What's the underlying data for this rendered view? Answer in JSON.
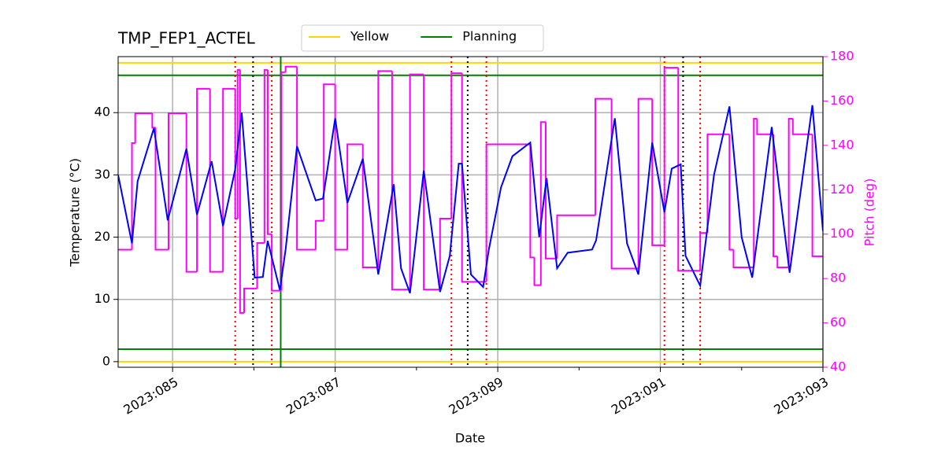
{
  "chart_data": {
    "type": "line",
    "title": "TMP_FEP1_ACTEL",
    "xlabel": "Date",
    "ylabel": "Temperature (°C)",
    "y2label": "Pitch (deg)",
    "y2color": "magenta",
    "xlim": [
      84.33,
      93
    ],
    "xticks": [
      {
        "value": 85,
        "label": "2023:085"
      },
      {
        "value": 87,
        "label": "2023:087"
      },
      {
        "value": 89,
        "label": "2023:089"
      },
      {
        "value": 91,
        "label": "2023:091"
      },
      {
        "value": 93,
        "label": "2023:093"
      }
    ],
    "xminorticks": [
      86,
      88,
      90,
      92
    ],
    "ylim": [
      -0.9,
      49
    ],
    "yticks": [
      0,
      10,
      20,
      30,
      40
    ],
    "y2lim": [
      40,
      180
    ],
    "y2ticks": [
      40,
      60,
      80,
      100,
      120,
      140,
      160,
      180
    ],
    "grid": true,
    "legend": "top",
    "hlines": [
      {
        "name": "Yellow",
        "color": "gold",
        "values": [
          48,
          0
        ]
      },
      {
        "name": "Planning",
        "color": "green",
        "values": [
          46,
          2
        ]
      }
    ],
    "vlines": [
      {
        "color": "red",
        "style": "dotted",
        "x": [
          85.77,
          86.22,
          88.43,
          88.86,
          91.05,
          91.49
        ]
      },
      {
        "color": "black",
        "style": "dotted",
        "x": [
          85.99,
          88.63,
          91.28
        ]
      },
      {
        "color": "green",
        "style": "solid",
        "x": [
          86.33
        ]
      }
    ],
    "series": [
      {
        "color": "magenta",
        "axis": "y2",
        "drawstyle": "steps",
        "edges": [
          84.33,
          84.5,
          84.54,
          84.75,
          84.79,
          84.95,
          85.17,
          85.3,
          85.46,
          85.62,
          85.77,
          85.8,
          85.83,
          85.88,
          86.04,
          86.13,
          86.17,
          86.22,
          86.34,
          86.39,
          86.53,
          86.76,
          86.86,
          87.0,
          87.15,
          87.34,
          87.53,
          87.7,
          87.92,
          88.09,
          88.29,
          88.43,
          88.56,
          88.86,
          89.4,
          89.45,
          89.53,
          89.59,
          89.73,
          90.2,
          90.4,
          90.73,
          90.9,
          91.05,
          91.22,
          91.49,
          91.58,
          91.85,
          91.9,
          92.15,
          92.19,
          92.39,
          92.44,
          92.58,
          92.63,
          92.87,
          93.0
        ],
        "values": [
          93,
          141,
          154.5,
          148,
          93,
          154.5,
          83,
          165.5,
          83,
          165.5,
          107,
          174,
          64.5,
          75.5,
          96,
          174,
          100,
          74.5,
          173,
          175.5,
          93,
          106,
          167.5,
          93,
          140.5,
          85,
          173.5,
          75,
          172,
          75,
          107,
          172.5,
          78.5,
          140.5,
          89.5,
          77,
          150.5,
          89,
          108.5,
          161,
          84.5,
          161,
          95,
          175,
          83.5,
          100.5,
          145,
          93,
          85,
          152,
          145,
          90,
          85,
          152,
          145,
          90
        ]
      },
      {
        "color": "blue",
        "x": [
          84.33,
          84.5,
          84.57,
          84.77,
          84.94,
          85.17,
          85.3,
          85.48,
          85.62,
          85.77,
          85.85,
          86.01,
          86.11,
          86.17,
          86.32,
          86.39,
          86.53,
          86.76,
          86.85,
          87.0,
          87.15,
          87.34,
          87.53,
          87.72,
          87.81,
          87.92,
          88.09,
          88.29,
          88.41,
          88.52,
          88.56,
          88.67,
          88.82,
          88.89,
          89.04,
          89.18,
          89.4,
          89.51,
          89.6,
          89.73,
          89.86,
          90.16,
          90.21,
          90.44,
          90.59,
          90.73,
          90.9,
          91.05,
          91.14,
          91.25,
          91.31,
          91.49,
          91.66,
          91.85,
          92.0,
          92.13,
          92.37,
          92.59,
          92.87,
          93.0
        ],
        "values": [
          30,
          19,
          29,
          37.5,
          22.7,
          34.2,
          23.6,
          32.2,
          21.8,
          30.9,
          40,
          13.5,
          13.6,
          19.4,
          11.5,
          18,
          34.6,
          25.9,
          26.2,
          39.1,
          25.5,
          32.6,
          14,
          28.5,
          15,
          11,
          30.7,
          11.2,
          17,
          31.8,
          31.8,
          14,
          12,
          18,
          28,
          33,
          35.2,
          20,
          29.5,
          15,
          17.5,
          18,
          19.5,
          39.1,
          19,
          14,
          35.2,
          24,
          31,
          31.7,
          17,
          12.2,
          30,
          41,
          20,
          13.5,
          37.7,
          14.3,
          41.2,
          21
        ]
      }
    ]
  }
}
